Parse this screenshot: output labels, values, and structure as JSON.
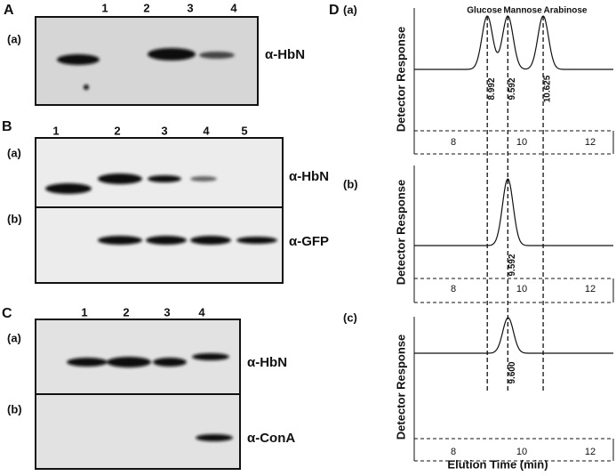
{
  "panels": [
    {
      "letter": "A",
      "lanes": [
        "1",
        "2",
        "3",
        "4"
      ],
      "blots": [
        {
          "label": "(a)",
          "antibody": "α-HbN"
        }
      ]
    },
    {
      "letter": "B",
      "lanes": [
        "1",
        "2",
        "3",
        "4",
        "5"
      ],
      "blots": [
        {
          "label": "(a)",
          "antibody": "α-HbN"
        },
        {
          "label": "(b)",
          "antibody": "α-GFP"
        }
      ]
    },
    {
      "letter": "C",
      "lanes": [
        "1",
        "2",
        "3",
        "4"
      ],
      "blots": [
        {
          "label": "(a)",
          "antibody": "α-HbN"
        },
        {
          "label": "(b)",
          "antibody": "α-ConA"
        }
      ]
    }
  ],
  "chromatography": {
    "letter": "D",
    "sugars": [
      "Glucose",
      "Mannose",
      "Arabinose"
    ],
    "y_label": "Detector Response",
    "x_label": "Elution Time (min)",
    "traces": [
      {
        "label": "(a)",
        "peaks": [
          "8.992",
          "9.592",
          "10.625"
        ],
        "ticks": [
          "8",
          "10",
          "12"
        ]
      },
      {
        "label": "(b)",
        "peaks": [
          "9.592"
        ],
        "ticks": [
          "8",
          "10",
          "12"
        ]
      },
      {
        "label": "(c)",
        "peaks": [
          "9.600"
        ],
        "ticks": [
          "8",
          "10",
          "12"
        ]
      }
    ]
  }
}
